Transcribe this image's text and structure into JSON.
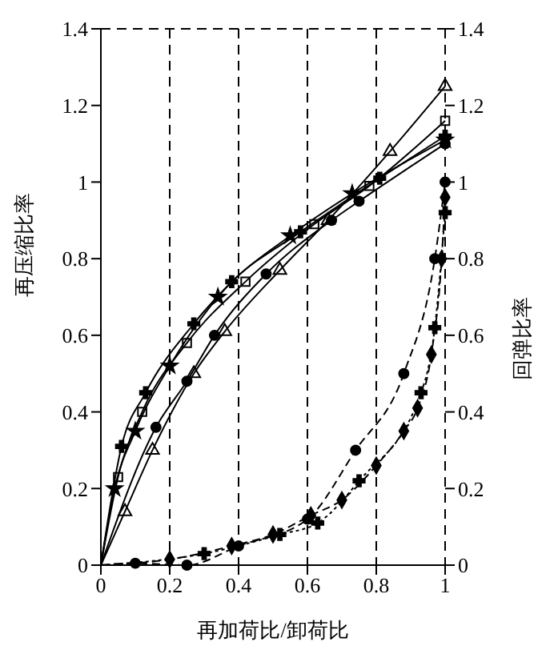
{
  "chart_data": {
    "type": "line",
    "xlabel": "再加荷比/卸荷比",
    "ylabel": "再压缩比率",
    "y2label": "回弹比率",
    "xlim": [
      0,
      1
    ],
    "xticks": [
      0,
      0.2,
      0.4,
      0.6,
      0.8,
      1
    ],
    "ylim": [
      0,
      1.4
    ],
    "yticks": [
      0,
      0.2,
      0.4,
      0.6,
      0.8,
      1,
      1.2,
      1.4
    ],
    "y2lim": [
      0,
      1.4
    ],
    "y2ticks": [
      0,
      0.2,
      0.4,
      0.6,
      0.8,
      1,
      1.2,
      1.4
    ],
    "grid": true,
    "series": [
      {
        "color": "#000000",
        "marker": "triangle",
        "line_style": "solid",
        "x": [
          0,
          0.07,
          0.15,
          0.27,
          0.36,
          0.52,
          0.66,
          0.84,
          1
        ],
        "values": [
          0,
          0.14,
          0.3,
          0.5,
          0.61,
          0.77,
          0.9,
          1.08,
          1.25
        ]
      },
      {
        "color": "#000000",
        "marker": "square",
        "line_style": "solid",
        "x": [
          0,
          0.05,
          0.12,
          0.25,
          0.42,
          0.62,
          0.78,
          1
        ],
        "values": [
          0,
          0.23,
          0.4,
          0.58,
          0.74,
          0.89,
          0.99,
          1.16
        ]
      },
      {
        "color": "#000000",
        "marker": "cross",
        "line_style": "solid",
        "x": [
          0,
          0.06,
          0.13,
          0.27,
          0.38,
          0.58,
          0.81,
          1
        ],
        "values": [
          0,
          0.31,
          0.45,
          0.63,
          0.74,
          0.87,
          1.01,
          1.12
        ]
      },
      {
        "color": "#000000",
        "marker": "star",
        "line_style": "solid",
        "x": [
          0,
          0.04,
          0.1,
          0.2,
          0.34,
          0.55,
          0.73,
          1
        ],
        "values": [
          0,
          0.2,
          0.35,
          0.52,
          0.7,
          0.86,
          0.97,
          1.11
        ]
      },
      {
        "color": "#000000",
        "marker": "circle",
        "line_style": "solid",
        "x": [
          0,
          0.16,
          0.25,
          0.33,
          0.48,
          0.67,
          0.75,
          1
        ],
        "values": [
          0,
          0.36,
          0.48,
          0.6,
          0.76,
          0.9,
          0.95,
          1.1
        ]
      },
      {
        "color": "#000000",
        "marker": "circle",
        "line_style": "dashed",
        "axis": "y2",
        "x": [
          0,
          0.1,
          0.25,
          0.4,
          0.6,
          0.74,
          0.88,
          0.97,
          1
        ],
        "values": [
          0,
          0.005,
          0,
          0.05,
          0.12,
          0.3,
          0.5,
          0.8,
          1
        ]
      },
      {
        "color": "#000000",
        "marker": "diamond",
        "line_style": "dashed",
        "axis": "y2",
        "x": [
          0,
          0.2,
          0.38,
          0.5,
          0.61,
          0.7,
          0.8,
          0.88,
          0.92,
          0.96,
          0.99,
          1
        ],
        "values": [
          0,
          0.015,
          0.05,
          0.08,
          0.13,
          0.17,
          0.26,
          0.35,
          0.41,
          0.55,
          0.8,
          0.96
        ]
      },
      {
        "color": "#000000",
        "marker": "cross",
        "line_style": "dotted",
        "axis": "y2",
        "x": [
          0,
          0.3,
          0.52,
          0.63,
          0.75,
          0.93,
          0.97,
          1
        ],
        "values": [
          0,
          0.03,
          0.08,
          0.11,
          0.22,
          0.45,
          0.62,
          0.92
        ]
      }
    ]
  }
}
